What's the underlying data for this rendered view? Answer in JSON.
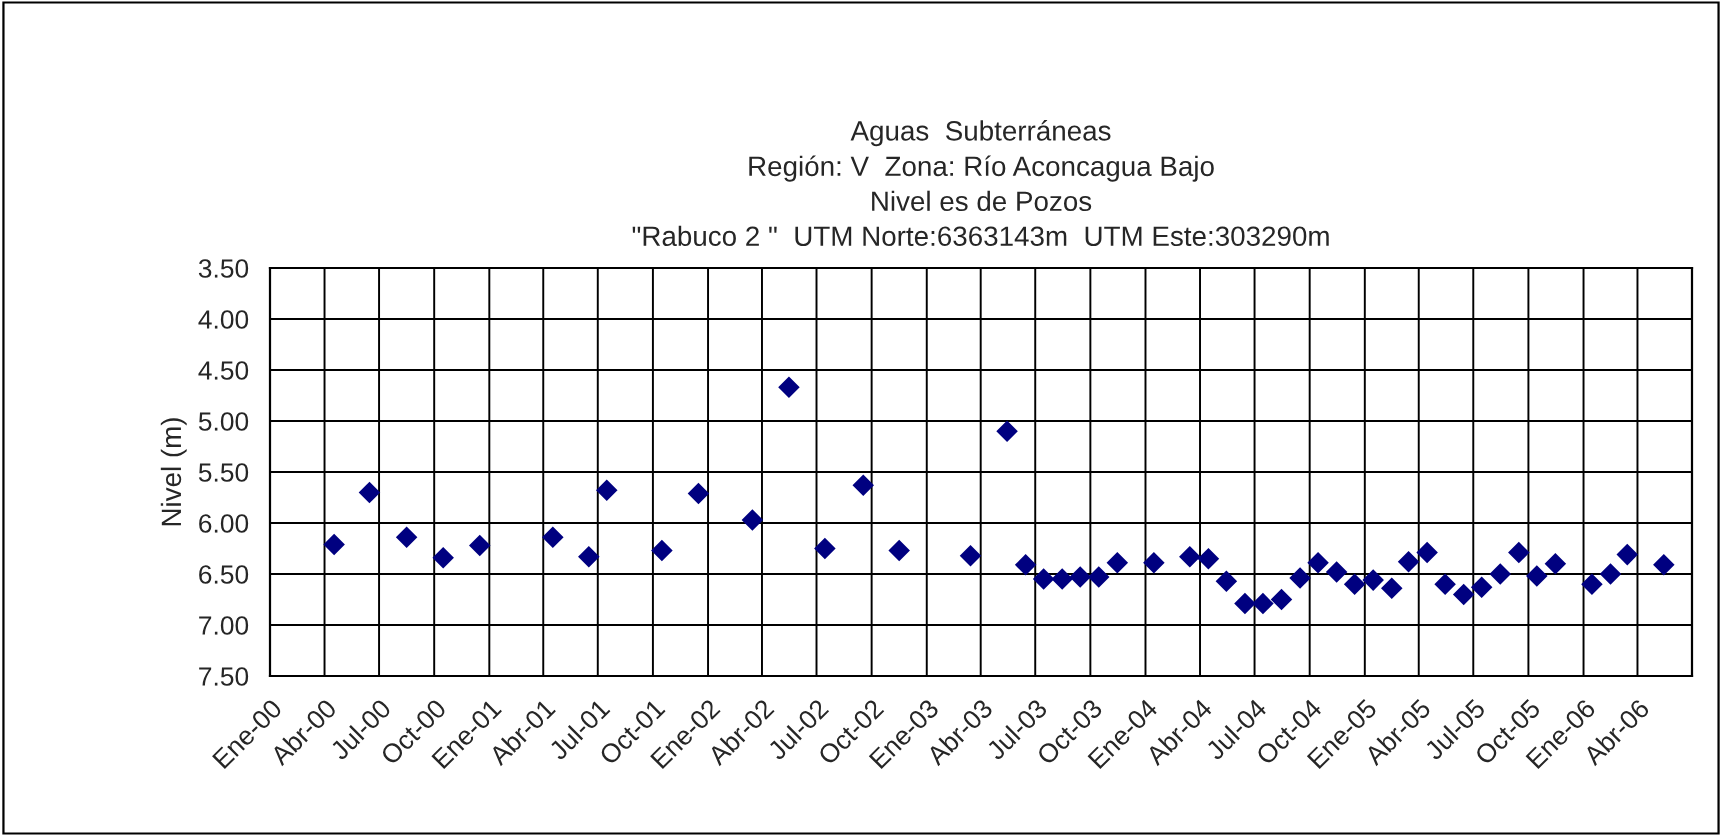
{
  "chart_data": {
    "type": "scatter",
    "title": "Aguas  Subterráneas\nRegión: V  Zona: Río Aconcagua Bajo\nNivel es de Pozos\n\"Rabuco 2 \"  UTM Norte:6363143m  UTM Este:303290m",
    "ylabel": "Nivel (m)",
    "marker": "diamond",
    "grid": true,
    "x": [
      "2000-04-17",
      "2000-06-15",
      "2000-08-16",
      "2000-10-16",
      "2000-12-16",
      "2001-04-17",
      "2001-06-16",
      "2001-07-16",
      "2001-10-16",
      "2001-12-16",
      "2002-03-16",
      "2002-05-16",
      "2002-07-15",
      "2002-09-17",
      "2002-11-16",
      "2003-03-15",
      "2003-05-15",
      "2003-06-15",
      "2003-07-15",
      "2003-08-15",
      "2003-09-14",
      "2003-10-15",
      "2003-11-15",
      "2004-01-15",
      "2004-03-15",
      "2004-04-15",
      "2004-05-15",
      "2004-06-15",
      "2004-07-15",
      "2004-08-15",
      "2004-09-15",
      "2004-10-15",
      "2004-11-15",
      "2004-12-15",
      "2005-01-15",
      "2005-02-15",
      "2005-03-15",
      "2005-04-15",
      "2005-05-15",
      "2005-06-15",
      "2005-07-15",
      "2005-08-15",
      "2005-09-15",
      "2005-10-15",
      "2005-11-15",
      "2006-01-15",
      "2006-02-15",
      "2006-03-15",
      "2006-05-15"
    ],
    "series": [
      {
        "color": "#000080",
        "values": [
          6.21,
          5.7,
          6.14,
          6.34,
          6.22,
          6.14,
          6.33,
          5.68,
          6.27,
          5.71,
          5.97,
          4.67,
          6.25,
          5.63,
          6.27,
          6.32,
          5.1,
          6.41,
          6.55,
          6.55,
          6.53,
          6.53,
          6.39,
          6.39,
          6.33,
          6.35,
          6.57,
          6.79,
          6.79,
          6.75,
          6.54,
          6.39,
          6.48,
          6.6,
          6.56,
          6.64,
          6.38,
          6.29,
          6.6,
          6.7,
          6.63,
          6.5,
          6.29,
          6.52,
          6.4,
          6.6,
          6.5,
          6.31,
          6.41
        ]
      }
    ],
    "xlim": [
      "2000-01",
      "2006-07"
    ],
    "xticks": [
      {
        "value": "2000-01",
        "label": "Ene-00"
      },
      {
        "value": "2000-04",
        "label": "Abr-00"
      },
      {
        "value": "2000-07",
        "label": "Jul-00"
      },
      {
        "value": "2000-10",
        "label": "Oct-00"
      },
      {
        "value": "2001-01",
        "label": "Ene-01"
      },
      {
        "value": "2001-04",
        "label": "Abr-01"
      },
      {
        "value": "2001-07",
        "label": "Jul-01"
      },
      {
        "value": "2001-10",
        "label": "Oct-01"
      },
      {
        "value": "2002-01",
        "label": "Ene-02"
      },
      {
        "value": "2002-04",
        "label": "Abr-02"
      },
      {
        "value": "2002-07",
        "label": "Jul-02"
      },
      {
        "value": "2002-10",
        "label": "Oct-02"
      },
      {
        "value": "2003-01",
        "label": "Ene-03"
      },
      {
        "value": "2003-04",
        "label": "Abr-03"
      },
      {
        "value": "2003-07",
        "label": "Jul-03"
      },
      {
        "value": "2003-10",
        "label": "Oct-03"
      },
      {
        "value": "2004-01",
        "label": "Ene-04"
      },
      {
        "value": "2004-04",
        "label": "Abr-04"
      },
      {
        "value": "2004-07",
        "label": "Jul-04"
      },
      {
        "value": "2004-10",
        "label": "Oct-04"
      },
      {
        "value": "2005-01",
        "label": "Ene-05"
      },
      {
        "value": "2005-04",
        "label": "Abr-05"
      },
      {
        "value": "2005-07",
        "label": "Jul-05"
      },
      {
        "value": "2005-10",
        "label": "Oct-05"
      },
      {
        "value": "2006-01",
        "label": "Ene-06"
      },
      {
        "value": "2006-04",
        "label": "Abr-06"
      },
      {
        "value": "2006-07",
        "label": null
      }
    ],
    "ylim": [
      7.5,
      3.5
    ],
    "yticks": [
      {
        "value": 3.5,
        "label": "3.50"
      },
      {
        "value": 4.0,
        "label": "4.00"
      },
      {
        "value": 4.5,
        "label": "4.50"
      },
      {
        "value": 5.0,
        "label": "5.00"
      },
      {
        "value": 5.5,
        "label": "5.50"
      },
      {
        "value": 6.0,
        "label": "6.00"
      },
      {
        "value": 6.5,
        "label": "6.50"
      },
      {
        "value": 7.0,
        "label": "7.00"
      },
      {
        "value": 7.5,
        "label": "7.50"
      }
    ]
  }
}
